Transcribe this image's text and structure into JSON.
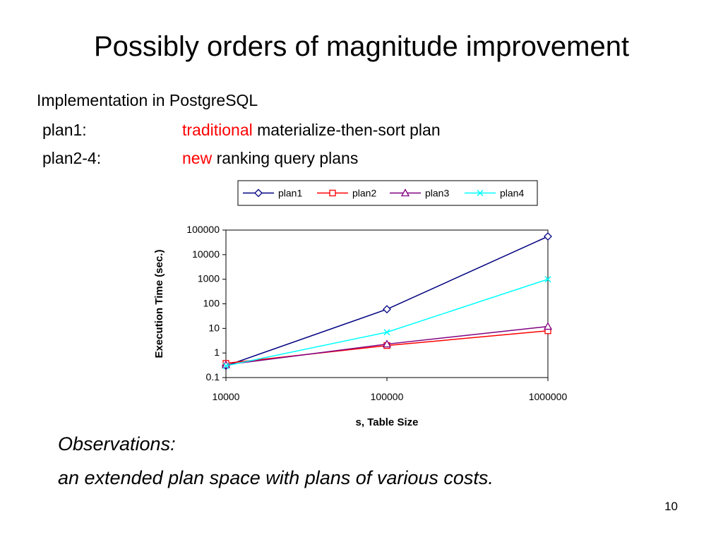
{
  "slide": {
    "title": "Possibly orders of magnitude improvement",
    "intro": "Implementation in PostgreSQL",
    "plan_lines": [
      {
        "label": "plan1:",
        "accent": "traditional",
        "rest": " materialize-then-sort plan"
      },
      {
        "label": "plan2-4:",
        "accent": "new",
        "rest": " ranking query plans"
      }
    ],
    "observations_heading": "Observations:",
    "observations_text": "an extended plan space with plans of various costs.",
    "page_number": "10",
    "accent_color": "#ff0000"
  },
  "chart_data": {
    "type": "line",
    "title": "",
    "xlabel": "s, Table Size",
    "ylabel": "Execution Time (sec.)",
    "x": [
      10000,
      100000,
      1000000
    ],
    "x_scale": "log",
    "y_scale": "log",
    "ylim": [
      0.1,
      100000
    ],
    "x_tick_labels": [
      "10000",
      "100000",
      "1000000"
    ],
    "y_tick_labels": [
      "0.1",
      "1",
      "10",
      "100",
      "1000",
      "10000",
      "100000"
    ],
    "legend_position": "top",
    "grid": false,
    "series": [
      {
        "name": "plan1",
        "values": [
          0.3,
          60,
          55000
        ],
        "color": "#000080",
        "marker": "diamond"
      },
      {
        "name": "plan2",
        "values": [
          0.38,
          2.0,
          8.0
        ],
        "color": "#ff0000",
        "marker": "square"
      },
      {
        "name": "plan3",
        "values": [
          0.33,
          2.3,
          12
        ],
        "color": "#800080",
        "marker": "triangle"
      },
      {
        "name": "plan4",
        "values": [
          0.3,
          7,
          1000
        ],
        "color": "#00ffff",
        "marker": "x"
      }
    ]
  }
}
